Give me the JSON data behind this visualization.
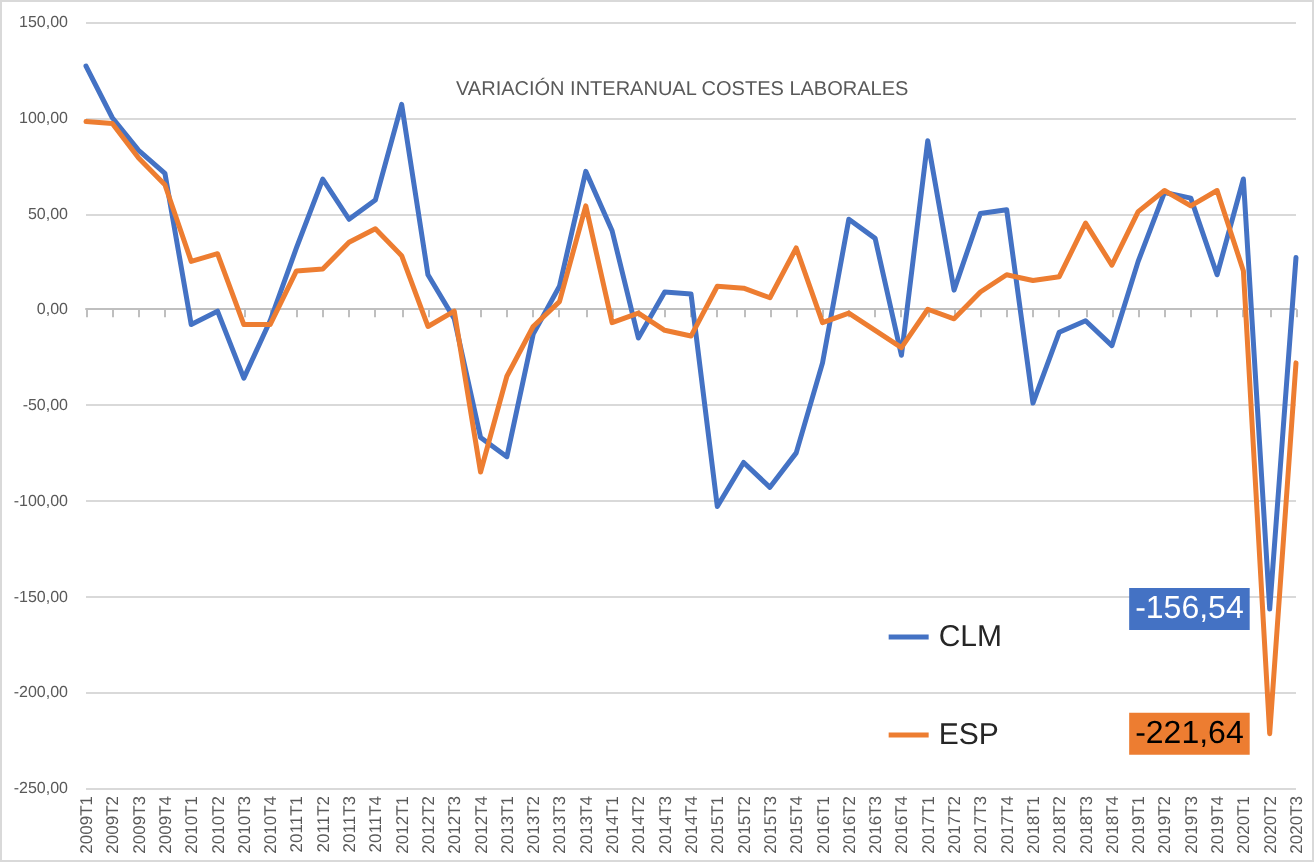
{
  "chart_data": {
    "type": "line",
    "title": "VARIACIÓN INTERANUAL COSTES LABORALES",
    "categories": [
      "2009T1",
      "2009T2",
      "2009T3",
      "2009T4",
      "2010T1",
      "2010T2",
      "2010T3",
      "2010T4",
      "2011T1",
      "2011T2",
      "2011T3",
      "2011T4",
      "2012T1",
      "2012T2",
      "2012T3",
      "2012T4",
      "2013T1",
      "2013T2",
      "2013T3",
      "2013T4",
      "2014T1",
      "2014T2",
      "2014T3",
      "2014T4",
      "2015T1",
      "2015T2",
      "2015T3",
      "2015T4",
      "2016T1",
      "2016T2",
      "2016T3",
      "2016T4",
      "2017T1",
      "2017T2",
      "2017T3",
      "2017T4",
      "2018T1",
      "2018T2",
      "2018T3",
      "2018T4",
      "2019T1",
      "2019T2",
      "2019T3",
      "2019T4",
      "2020T1",
      "2020T2",
      "2020T3"
    ],
    "series": [
      {
        "name": "CLM",
        "color": "#4472c4",
        "values": [
          127,
          100,
          83,
          71,
          -8,
          -1,
          -36,
          -6,
          32,
          68,
          47,
          57,
          107,
          18,
          -5,
          -67,
          -77,
          -13,
          12,
          72,
          41,
          -15,
          9,
          8,
          -103,
          -80,
          -93,
          -75,
          -28,
          47,
          37,
          -24,
          88,
          10,
          50,
          52,
          -49,
          -12,
          -6,
          -19,
          25,
          61,
          58,
          18,
          68,
          -156.54,
          27
        ],
        "value_labels": [
          null,
          null,
          null,
          null,
          null,
          null,
          null,
          null,
          null,
          null,
          null,
          null,
          null,
          null,
          null,
          null,
          null,
          null,
          null,
          null,
          null,
          null,
          null,
          null,
          null,
          null,
          null,
          null,
          null,
          null,
          null,
          null,
          null,
          null,
          null,
          null,
          null,
          null,
          null,
          null,
          null,
          null,
          null,
          null,
          null,
          "-156,54",
          null
        ]
      },
      {
        "name": "ESP",
        "color": "#ed7d31",
        "values": [
          98,
          97,
          79,
          65,
          25,
          29,
          -8,
          -8,
          20,
          21,
          35,
          42,
          28,
          -9,
          -1,
          -85,
          -35,
          -9,
          4,
          54,
          -7,
          -2,
          -11,
          -14,
          12,
          11,
          6,
          32,
          -7,
          -2,
          -11,
          -20,
          0,
          -5,
          9,
          18,
          15,
          17,
          45,
          23,
          51,
          62,
          54,
          62,
          20,
          -221.64,
          -28
        ],
        "value_labels": [
          null,
          null,
          null,
          null,
          null,
          null,
          null,
          null,
          null,
          null,
          null,
          null,
          null,
          null,
          null,
          null,
          null,
          null,
          null,
          null,
          null,
          null,
          null,
          null,
          null,
          null,
          null,
          null,
          null,
          null,
          null,
          null,
          null,
          null,
          null,
          null,
          null,
          null,
          null,
          null,
          null,
          null,
          null,
          null,
          null,
          "-221,64",
          null
        ]
      }
    ],
    "ylim": [
      -250,
      150
    ],
    "yticks": [
      {
        "value": -250,
        "label": "-250,00"
      },
      {
        "value": -200,
        "label": "-200,00"
      },
      {
        "value": -150,
        "label": "-150,00"
      },
      {
        "value": -100,
        "label": "-100,00"
      },
      {
        "value": -50,
        "label": "-50,00"
      },
      {
        "value": 0,
        "label": "0,00"
      },
      {
        "value": 50,
        "label": "50,00"
      },
      {
        "value": 100,
        "label": "100,00"
      },
      {
        "value": 150,
        "label": "150,00"
      }
    ],
    "grid": "y",
    "legend": "bottom right",
    "marker": "none",
    "line_style": "solid"
  }
}
